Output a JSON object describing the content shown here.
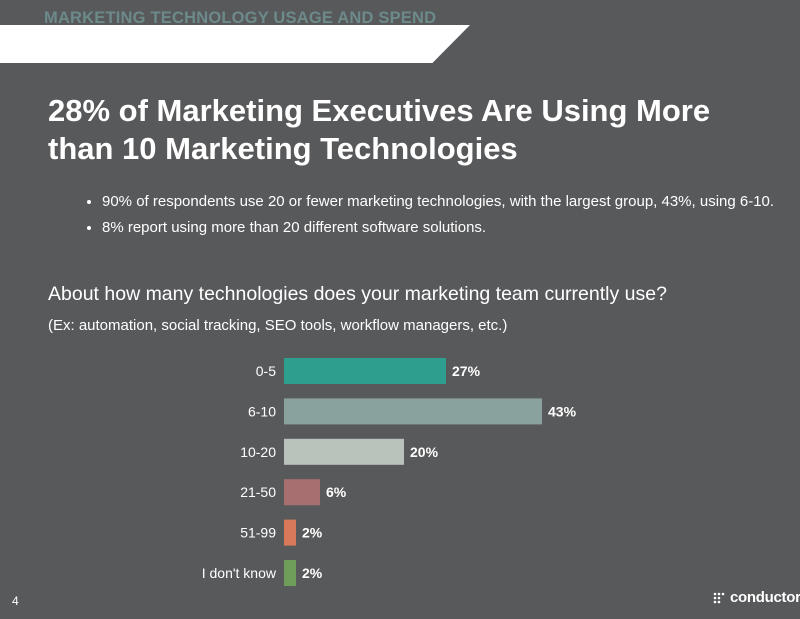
{
  "banner": {
    "label": "MARKETING TECHNOLOGY USAGE AND SPEND"
  },
  "headline": "28% of Marketing Executives Are Using More than 10 Marketing Technologies",
  "bullets": [
    "90% of respondents use 20 or fewer marketing technologies, with the largest group, 43%, using 6-10.",
    "8% report using more than 20 different software solutions."
  ],
  "question": {
    "text": "About how many technologies does your marketing team currently use?",
    "sub": "(Ex: automation, social tracking, SEO tools, workflow managers, etc.)"
  },
  "chart_data": {
    "type": "bar",
    "orientation": "horizontal",
    "categories": [
      "0-5",
      "6-10",
      "10-20",
      "21-50",
      "51-99",
      "I don't know"
    ],
    "values": [
      27,
      43,
      20,
      6,
      2,
      2
    ],
    "value_labels": [
      "27%",
      "43%",
      "20%",
      "6%",
      "2%",
      "2%"
    ],
    "colors": [
      "#2e9e8e",
      "#8aa29e",
      "#b9c3bc",
      "#a86f70",
      "#d87a5a",
      "#6e9e5a"
    ],
    "title": "",
    "xlabel": "",
    "ylabel": "",
    "grid": false,
    "legend": "none"
  },
  "footer": {
    "page_number": "4",
    "logo_text": "conductor",
    "logo_tm": "™"
  },
  "colors": {
    "background": "#58595b",
    "banner_bg": "#ffffff",
    "banner_text": "#6d8a8a",
    "text": "#ffffff"
  }
}
